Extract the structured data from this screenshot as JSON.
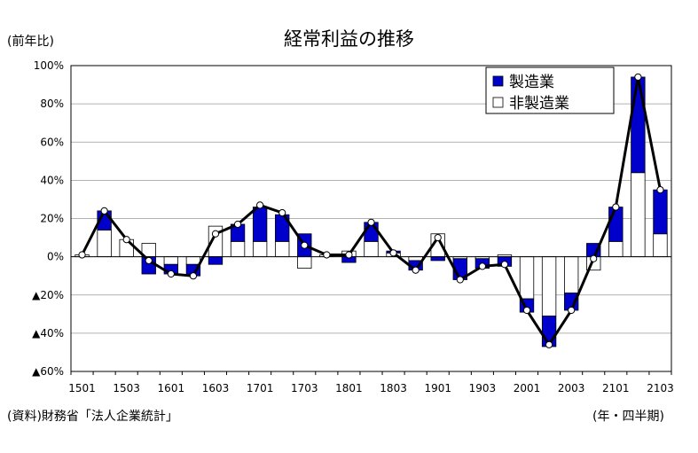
{
  "chart_data": {
    "type": "bar",
    "title": "経常利益の推移",
    "ylabel": "(前年比)",
    "xlabel": "(年・四半期)",
    "source": "(資料)財務省「法人企業統計」",
    "ylim": [
      -60,
      100
    ],
    "y_ticks": [
      100,
      80,
      60,
      40,
      20,
      0,
      -20,
      -40,
      -60
    ],
    "y_tick_labels": [
      "100%",
      "80%",
      "60%",
      "40%",
      "20%",
      "0%",
      "▲20%",
      "▲40%",
      "▲60%"
    ],
    "categories": [
      "1501",
      "1502",
      "1503",
      "1504",
      "1601",
      "1602",
      "1603",
      "1604",
      "1701",
      "1702",
      "1703",
      "1704",
      "1801",
      "1802",
      "1803",
      "1804",
      "1901",
      "1902",
      "1903",
      "1904",
      "2001",
      "2002",
      "2003",
      "2004",
      "2101",
      "2102",
      "2103"
    ],
    "x_tick_labels": [
      "1501",
      "1503",
      "1601",
      "1603",
      "1701",
      "1703",
      "1801",
      "1803",
      "1901",
      "1903",
      "2001",
      "2003",
      "2101",
      "2103"
    ],
    "legend_position": "top-right",
    "stacked": true,
    "series": [
      {
        "name": "製造業",
        "color": "#0000cc",
        "values": [
          0,
          10,
          0,
          -9,
          -5,
          -6,
          -4,
          9,
          18,
          14,
          12,
          0,
          -3,
          10,
          1,
          -5,
          -2,
          -11,
          -5,
          -5,
          -7,
          -16,
          -9,
          7,
          18,
          50,
          23
        ]
      },
      {
        "name": "非製造業",
        "color": "#ffffff",
        "values": [
          1,
          14,
          9,
          7,
          -4,
          -4,
          16,
          8,
          8,
          8,
          -6,
          1,
          3,
          8,
          2,
          -2,
          12,
          -1,
          -1,
          1,
          -22,
          -31,
          -19,
          -7,
          8,
          44,
          12
        ]
      },
      {
        "name": "経常利益",
        "type": "line",
        "color": "#000000",
        "values": [
          1,
          24,
          9,
          -2,
          -9,
          -10,
          12,
          17,
          27,
          23,
          6,
          1,
          1,
          18,
          2,
          -7,
          10,
          -12,
          -5,
          -4,
          -28,
          -46,
          -28,
          -1,
          26,
          94,
          35
        ]
      }
    ]
  }
}
